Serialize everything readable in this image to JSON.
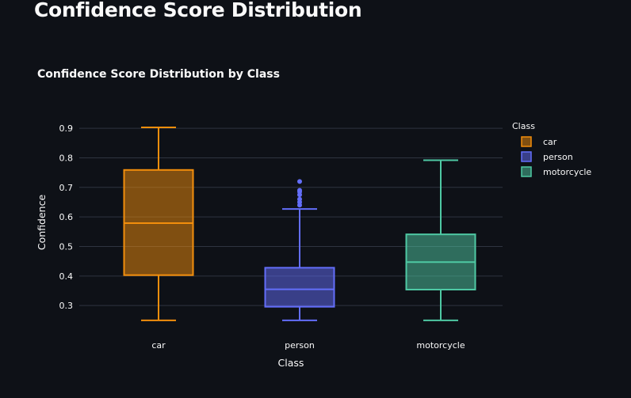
{
  "page": {
    "title": "Confidence Score Distribution"
  },
  "chart_data": {
    "type": "box",
    "title": "Confidence Score Distribution by Class",
    "xlabel": "Class",
    "ylabel": "Confidence",
    "ylim": [
      0.275,
      0.925
    ],
    "yticks": [
      0.3,
      0.4,
      0.5,
      0.6,
      0.7,
      0.8,
      0.9
    ],
    "grid": true,
    "legend": {
      "title": "Class",
      "placement": "top-right"
    },
    "categories": [
      "car",
      "person",
      "motorcycle"
    ],
    "series": [
      {
        "name": "car",
        "color": "#f28e0c",
        "min": 0.25,
        "q1": 0.403,
        "median": 0.579,
        "q3": 0.759,
        "max": 0.903,
        "outliers": []
      },
      {
        "name": "person",
        "color": "#636efa",
        "min": 0.25,
        "q1": 0.296,
        "median": 0.355,
        "q3": 0.428,
        "max": 0.627,
        "outliers": [
          0.64,
          0.65,
          0.66,
          0.675,
          0.685,
          0.69,
          0.72
        ]
      },
      {
        "name": "motorcycle",
        "color": "#4fc9a4",
        "min": 0.25,
        "q1": 0.354,
        "median": 0.447,
        "q3": 0.541,
        "max": 0.792,
        "outliers": []
      }
    ]
  }
}
